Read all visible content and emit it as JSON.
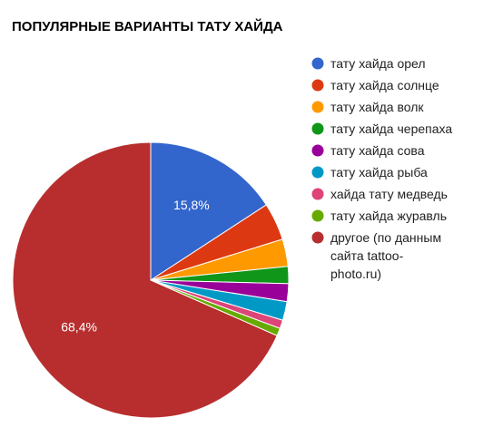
{
  "chart_data": {
    "type": "pie",
    "title": "ПОПУЛЯРНЫЕ ВАРИАНТЫ ТАТУ ХАЙДА",
    "legend_position": "right",
    "slices": [
      {
        "label": "тату хайда орел",
        "value": 15.8,
        "color": "#3366cc",
        "data_label": "15,8%"
      },
      {
        "label": "тату хайда солнце",
        "value": 4.4,
        "color": "#dc3912"
      },
      {
        "label": "тату хайда волк",
        "value": 3.2,
        "color": "#ff9900"
      },
      {
        "label": "тату хайда черепаха",
        "value": 2.0,
        "color": "#109618"
      },
      {
        "label": "тату хайда сова",
        "value": 2.1,
        "color": "#990099"
      },
      {
        "label": "тату хайда рыба",
        "value": 2.2,
        "color": "#0099c6"
      },
      {
        "label": "хайда тату медведь",
        "value": 1.0,
        "color": "#dd4477"
      },
      {
        "label": "тату хайда журавль",
        "value": 0.9,
        "color": "#66aa00"
      },
      {
        "label": "другое (по данным сайта tattoo-photo.ru)",
        "legend_lines": [
          "другое (по данным",
          "сайта tattoo-",
          "photo.ru)"
        ],
        "value": 68.4,
        "color": "#b82e2e",
        "data_label": "68,4%"
      }
    ]
  }
}
